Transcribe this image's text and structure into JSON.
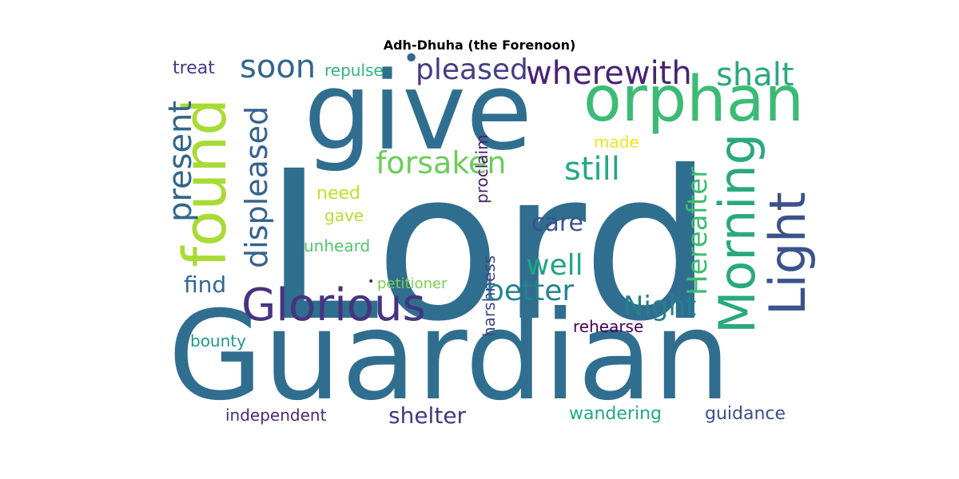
{
  "title": "Adh-Dhuha (the Forenoon)",
  "words": [
    {
      "text": "Lord",
      "color": "#306e8f",
      "vertical": false
    },
    {
      "text": "Guardian",
      "color": "#306e8f",
      "vertical": false
    },
    {
      "text": "give",
      "color": "#306e8f",
      "vertical": false
    },
    {
      "text": "orphan",
      "color": "#3bbb75",
      "vertical": false
    },
    {
      "text": "found",
      "color": "#a8db34",
      "vertical": true
    },
    {
      "text": "Glorious",
      "color": "#463480",
      "vertical": false
    },
    {
      "text": "Morning",
      "color": "#2aa87e",
      "vertical": true
    },
    {
      "text": "Light",
      "color": "#3b528b",
      "vertical": true
    },
    {
      "text": "present",
      "color": "#32658e",
      "vertical": true
    },
    {
      "text": "displeased",
      "color": "#33628d",
      "vertical": true
    },
    {
      "text": "Hereafter",
      "color": "#3fbc73",
      "vertical": true
    },
    {
      "text": "soon",
      "color": "#32658e",
      "vertical": false
    },
    {
      "text": "pleased",
      "color": "#433e85",
      "vertical": false
    },
    {
      "text": "wherewith",
      "color": "#482374",
      "vertical": false
    },
    {
      "text": "shalt",
      "color": "#2aa87e",
      "vertical": false
    },
    {
      "text": "forsaken",
      "color": "#6ccd5a",
      "vertical": false
    },
    {
      "text": "still",
      "color": "#23a982",
      "vertical": false
    },
    {
      "text": "better",
      "color": "#26828e",
      "vertical": false
    },
    {
      "text": "well",
      "color": "#20a486",
      "vertical": false
    },
    {
      "text": "Night",
      "color": "#277f8e",
      "vertical": false
    },
    {
      "text": "care",
      "color": "#3b528b",
      "vertical": false
    },
    {
      "text": "find",
      "color": "#31688e",
      "vertical": false
    },
    {
      "text": "treat",
      "color": "#453781",
      "vertical": false
    },
    {
      "text": "repulse",
      "color": "#2fb47c",
      "vertical": false
    },
    {
      "text": "made",
      "color": "#f1e51d",
      "vertical": false
    },
    {
      "text": "need",
      "color": "#c2df23",
      "vertical": false
    },
    {
      "text": "gave",
      "color": "#b5de2b",
      "vertical": false
    },
    {
      "text": "unheard",
      "color": "#52c569",
      "vertical": false
    },
    {
      "text": "proclaim",
      "color": "#481f70",
      "vertical": true
    },
    {
      "text": "petitioner",
      "color": "#7ad151",
      "vertical": false
    },
    {
      "text": "rehearse",
      "color": "#440154",
      "vertical": false
    },
    {
      "text": "bounty",
      "color": "#1f978b",
      "vertical": false
    },
    {
      "text": "harshness",
      "color": "#3e4989",
      "vertical": true
    },
    {
      "text": "independent",
      "color": "#472d7b",
      "vertical": false
    },
    {
      "text": "shelter",
      "color": "#453781",
      "vertical": false
    },
    {
      "text": "wandering",
      "color": "#22a884",
      "vertical": false
    },
    {
      "text": "guidance",
      "color": "#3d4e8a",
      "vertical": false
    },
    {
      "text": "•",
      "color": "#31688e",
      "vertical": false
    },
    {
      "text": "•",
      "color": "#306e8f",
      "vertical": false
    },
    {
      "text": "•",
      "color": "#482374",
      "vertical": false
    }
  ]
}
